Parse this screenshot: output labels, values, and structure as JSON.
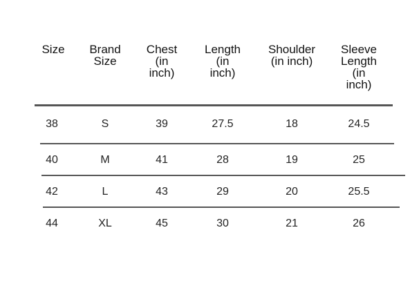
{
  "table": {
    "headers": [
      "Size",
      "Brand\nSize",
      "Chest\n(in\ninch)",
      "Length\n(in\ninch)",
      "Shoulder\n(in inch)",
      "Sleeve\nLength\n(in\ninch)"
    ],
    "rows": [
      [
        "38",
        "S",
        "39",
        "27.5",
        "18",
        "24.5"
      ],
      [
        "40",
        "M",
        "41",
        "28",
        "19",
        "25"
      ],
      [
        "42",
        "L",
        "43",
        "29",
        "20",
        "25.5"
      ],
      [
        "44",
        "XL",
        "45",
        "30",
        "21",
        "26"
      ]
    ]
  }
}
